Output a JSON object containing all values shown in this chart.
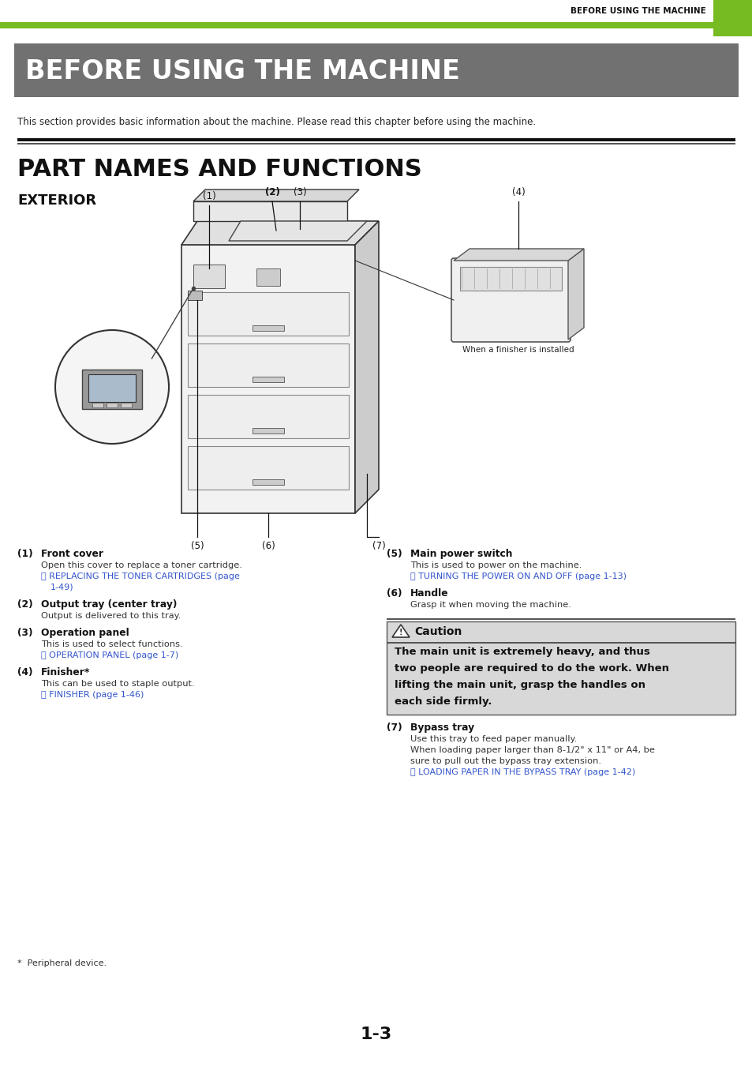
{
  "page_bg": "#ffffff",
  "header_bar_color": "#77bb22",
  "header_text": "BEFORE USING THE MACHINE",
  "header_text_color": "#111111",
  "title_box_color": "#717171",
  "title_box_text": "BEFORE USING THE MACHINE",
  "title_box_text_color": "#ffffff",
  "section_title": "PART NAMES AND FUNCTIONS",
  "section_subtitle": "EXTERIOR",
  "intro_text": "This section provides basic information about the machine. Please read this chapter before using the machine.",
  "page_number": "1-3",
  "blue_link_color": "#3355cc",
  "caution_bg": "#d8d8d8",
  "caution_border": "#555555",
  "caution_title": "Caution",
  "caution_lines": [
    "The main unit is extremely heavy, and thus",
    "two people are required to do the work. When",
    "lifting the main unit, grasp the handles on",
    "each side firmly."
  ],
  "footnote": "*  Peripheral device."
}
